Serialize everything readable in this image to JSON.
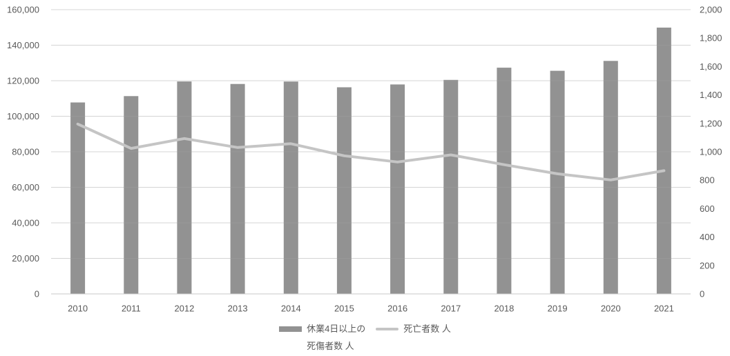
{
  "chart_data": {
    "type": "combo-bar-line",
    "title": "",
    "categories": [
      "2010",
      "2011",
      "2012",
      "2013",
      "2014",
      "2015",
      "2016",
      "2017",
      "2018",
      "2019",
      "2020",
      "2021"
    ],
    "series": [
      {
        "name": "休業4日以上の死傷者数 人",
        "type": "bar",
        "axis": "left",
        "values": [
          107759,
          111349,
          119576,
          118157,
          119535,
          116311,
          117910,
          120460,
          127329,
          125611,
          131156,
          149918
        ]
      },
      {
        "name": "死亡者数 人",
        "type": "line",
        "axis": "right",
        "values": [
          1195,
          1024,
          1093,
          1030,
          1057,
          972,
          928,
          978,
          909,
          845,
          802,
          867
        ]
      }
    ],
    "left_axis": {
      "min": 0,
      "max": 160000,
      "step": 20000,
      "tick_labels": [
        "0",
        "20,000",
        "40,000",
        "60,000",
        "80,000",
        "100,000",
        "120,000",
        "140,000",
        "160,000"
      ]
    },
    "right_axis": {
      "min": 0,
      "max": 2000,
      "step": 200,
      "tick_labels": [
        "0",
        "200",
        "400",
        "600",
        "800",
        "1,000",
        "1,200",
        "1,400",
        "1,600",
        "1,800",
        "2,000"
      ]
    },
    "grid": true,
    "legend_position": "bottom"
  },
  "legend": {
    "bar_label_line1": "休業4日以上の",
    "bar_label_line2": "死傷者数 人",
    "line_label": "死亡者数 人"
  },
  "colors": {
    "bar": "#929292",
    "line": "#C5C5C5",
    "gridline": "#D9D9D9",
    "zero_line": "#C8C8C8",
    "axis_text": "#595959",
    "background": "#FFFFFF"
  }
}
